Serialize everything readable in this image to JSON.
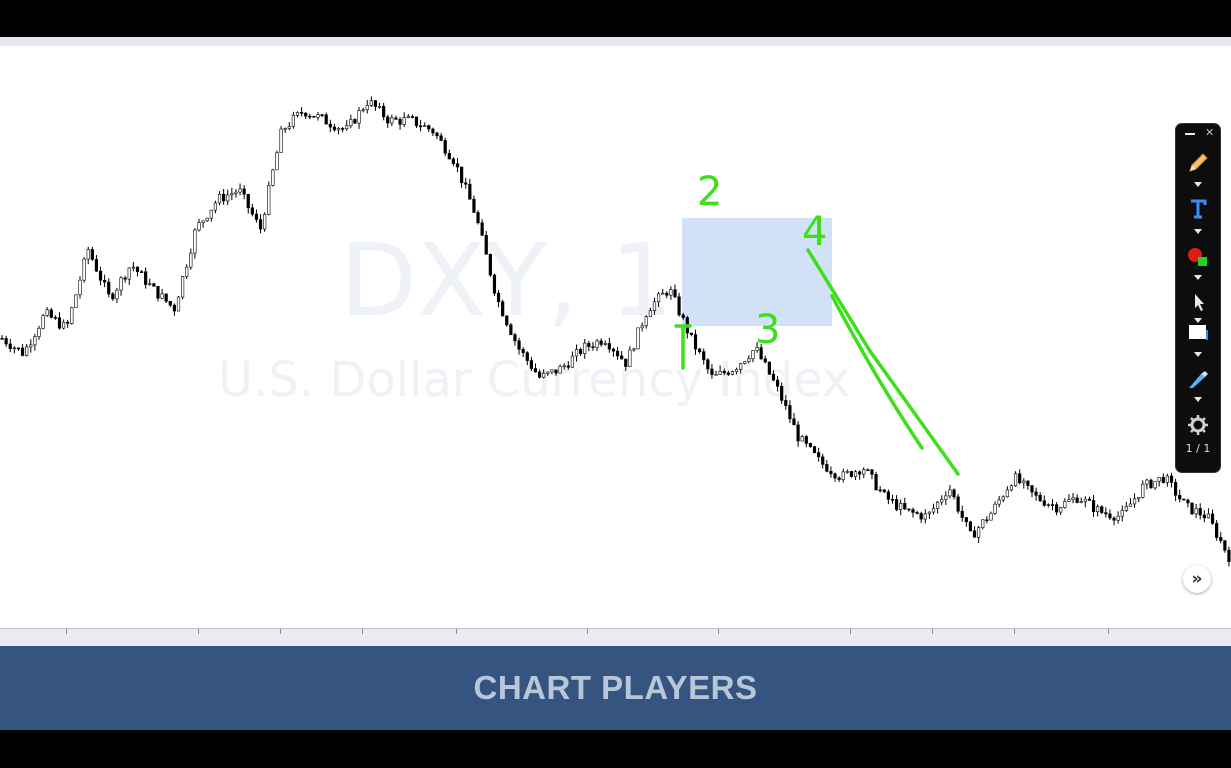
{
  "chart": {
    "symbol_watermark": "DXY, 1h",
    "name_watermark": "U.S. Dollar Currency Index",
    "candle_color_up": "#ffffff",
    "candle_color_down": "#000000",
    "highlight_color": "#cfe0f6",
    "annotation_color": "#3dde1c",
    "annotations": [
      "1",
      "2",
      "3",
      "4"
    ]
  },
  "chart_data": {
    "type": "candlestick",
    "title": "DXY, 1h",
    "subtitle": "U.S. Dollar Currency Index",
    "close_trend": [
      40,
      37,
      45,
      42,
      58,
      48,
      55,
      50,
      46,
      62,
      68,
      70,
      62,
      82,
      86,
      84,
      82,
      88,
      84,
      84,
      82,
      76,
      65,
      48,
      38,
      32,
      34,
      38,
      40,
      35,
      46,
      50,
      40,
      32,
      34,
      38,
      30,
      20,
      15,
      12,
      14,
      8,
      5,
      4,
      10,
      0,
      5,
      12,
      8,
      6,
      8,
      5,
      4,
      10,
      12,
      6,
      4,
      -4
    ]
  },
  "toolbar": {
    "page_indicator": "1 / 1",
    "tools": [
      "pencil-tool",
      "text-tool",
      "color-picker",
      "pointer-tool",
      "eraser-tool",
      "highlighter-tool",
      "settings"
    ]
  },
  "banner": {
    "title": "CHART PLAYERS"
  },
  "nav": {
    "scroll_right_symbol": "»"
  }
}
